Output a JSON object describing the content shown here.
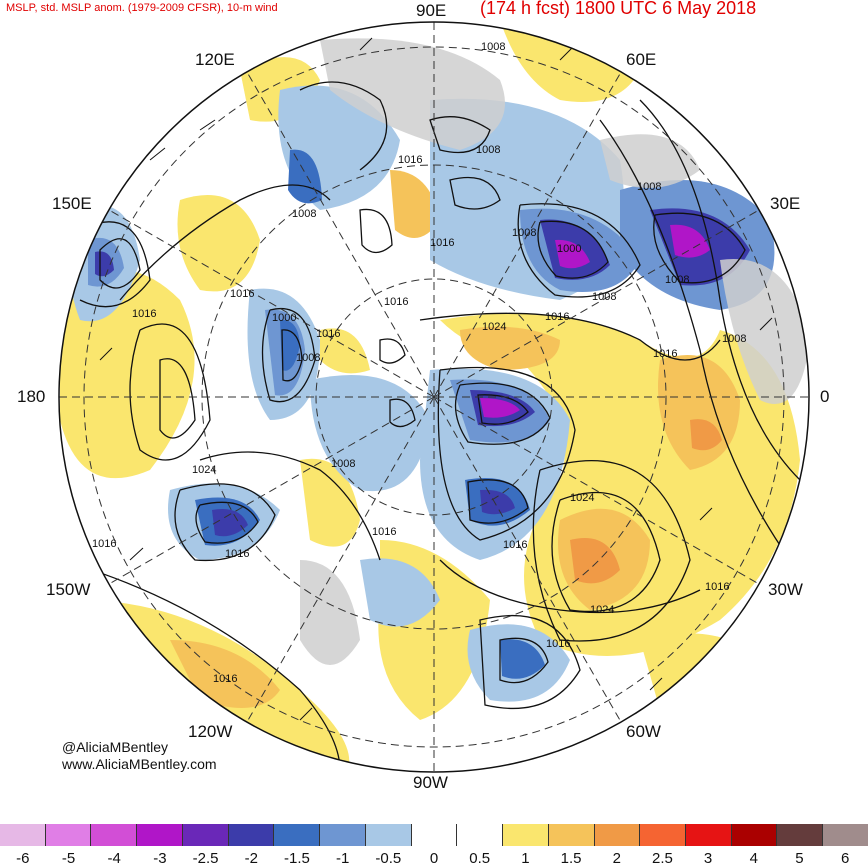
{
  "header": {
    "left_title": "MSLP, std. MSLP anom. (1979-2009 CFSR), 10-m wind",
    "right_title": "(174 h fcst) 1800 UTC 6 May 2018"
  },
  "map": {
    "projection": "north-polar-stereographic",
    "longitude_labels": [
      {
        "text": "90E",
        "id": "lon-90e"
      },
      {
        "text": "60E",
        "id": "lon-60e"
      },
      {
        "text": "120E",
        "id": "lon-120e"
      },
      {
        "text": "30E",
        "id": "lon-30e"
      },
      {
        "text": "150E",
        "id": "lon-150e"
      },
      {
        "text": "180",
        "id": "lon-180"
      },
      {
        "text": "0",
        "id": "lon-0"
      },
      {
        "text": "150W",
        "id": "lon-150w"
      },
      {
        "text": "30W",
        "id": "lon-30w"
      },
      {
        "text": "120W",
        "id": "lon-120w"
      },
      {
        "text": "60W",
        "id": "lon-60w"
      },
      {
        "text": "90W",
        "id": "lon-90w"
      }
    ],
    "isobar_labels": [
      "1008",
      "1016",
      "1008",
      "1008",
      "1000",
      "1008",
      "1016",
      "1008",
      "1008",
      "1016",
      "1016",
      "1024",
      "1016",
      "1000",
      "1016",
      "1008",
      "1008",
      "1016",
      "1024",
      "1008",
      "1008",
      "1024",
      "1016",
      "1016",
      "1016",
      "1024",
      "1016",
      "1016",
      "1016",
      "1016",
      "1016"
    ]
  },
  "credits": {
    "handle": "@AliciaMBentley",
    "website": "www.AliciaMBentley.com"
  },
  "colorbar": {
    "ticks": [
      "-6",
      "-5",
      "-4",
      "-3",
      "-2.5",
      "-2",
      "-1.5",
      "-1",
      "-0.5",
      "0",
      "0.5",
      "1",
      "1.5",
      "2",
      "2.5",
      "3",
      "4",
      "5",
      "6"
    ],
    "colors": [
      "#e6b8e6",
      "#e07ee6",
      "#d24ed6",
      "#b016c8",
      "#6a28b8",
      "#3c3caa",
      "#3a6ec0",
      "#6e96d2",
      "#a8c8e6",
      "#ffffff",
      "#ffffff",
      "#fae66e",
      "#f5c35a",
      "#f09a46",
      "#f56432",
      "#e61414",
      "#aa0000",
      "#643c3c",
      "#a08c8c"
    ]
  },
  "chart_data": {
    "type": "heatmap",
    "title": "MSLP, std. MSLP anom. (1979-2009 CFSR), 10-m wind",
    "subtitle": "(174 h fcst) 1800 UTC 6 May 2018",
    "colorbar_range": [
      -6,
      6
    ],
    "anomaly_levels": [
      -6,
      -5,
      -4,
      -3,
      -2.5,
      -2,
      -1.5,
      -1,
      -0.5,
      0,
      0.5,
      1,
      1.5,
      2,
      2.5,
      3,
      4,
      5,
      6
    ],
    "isobar_interval_hPa": 8
  }
}
